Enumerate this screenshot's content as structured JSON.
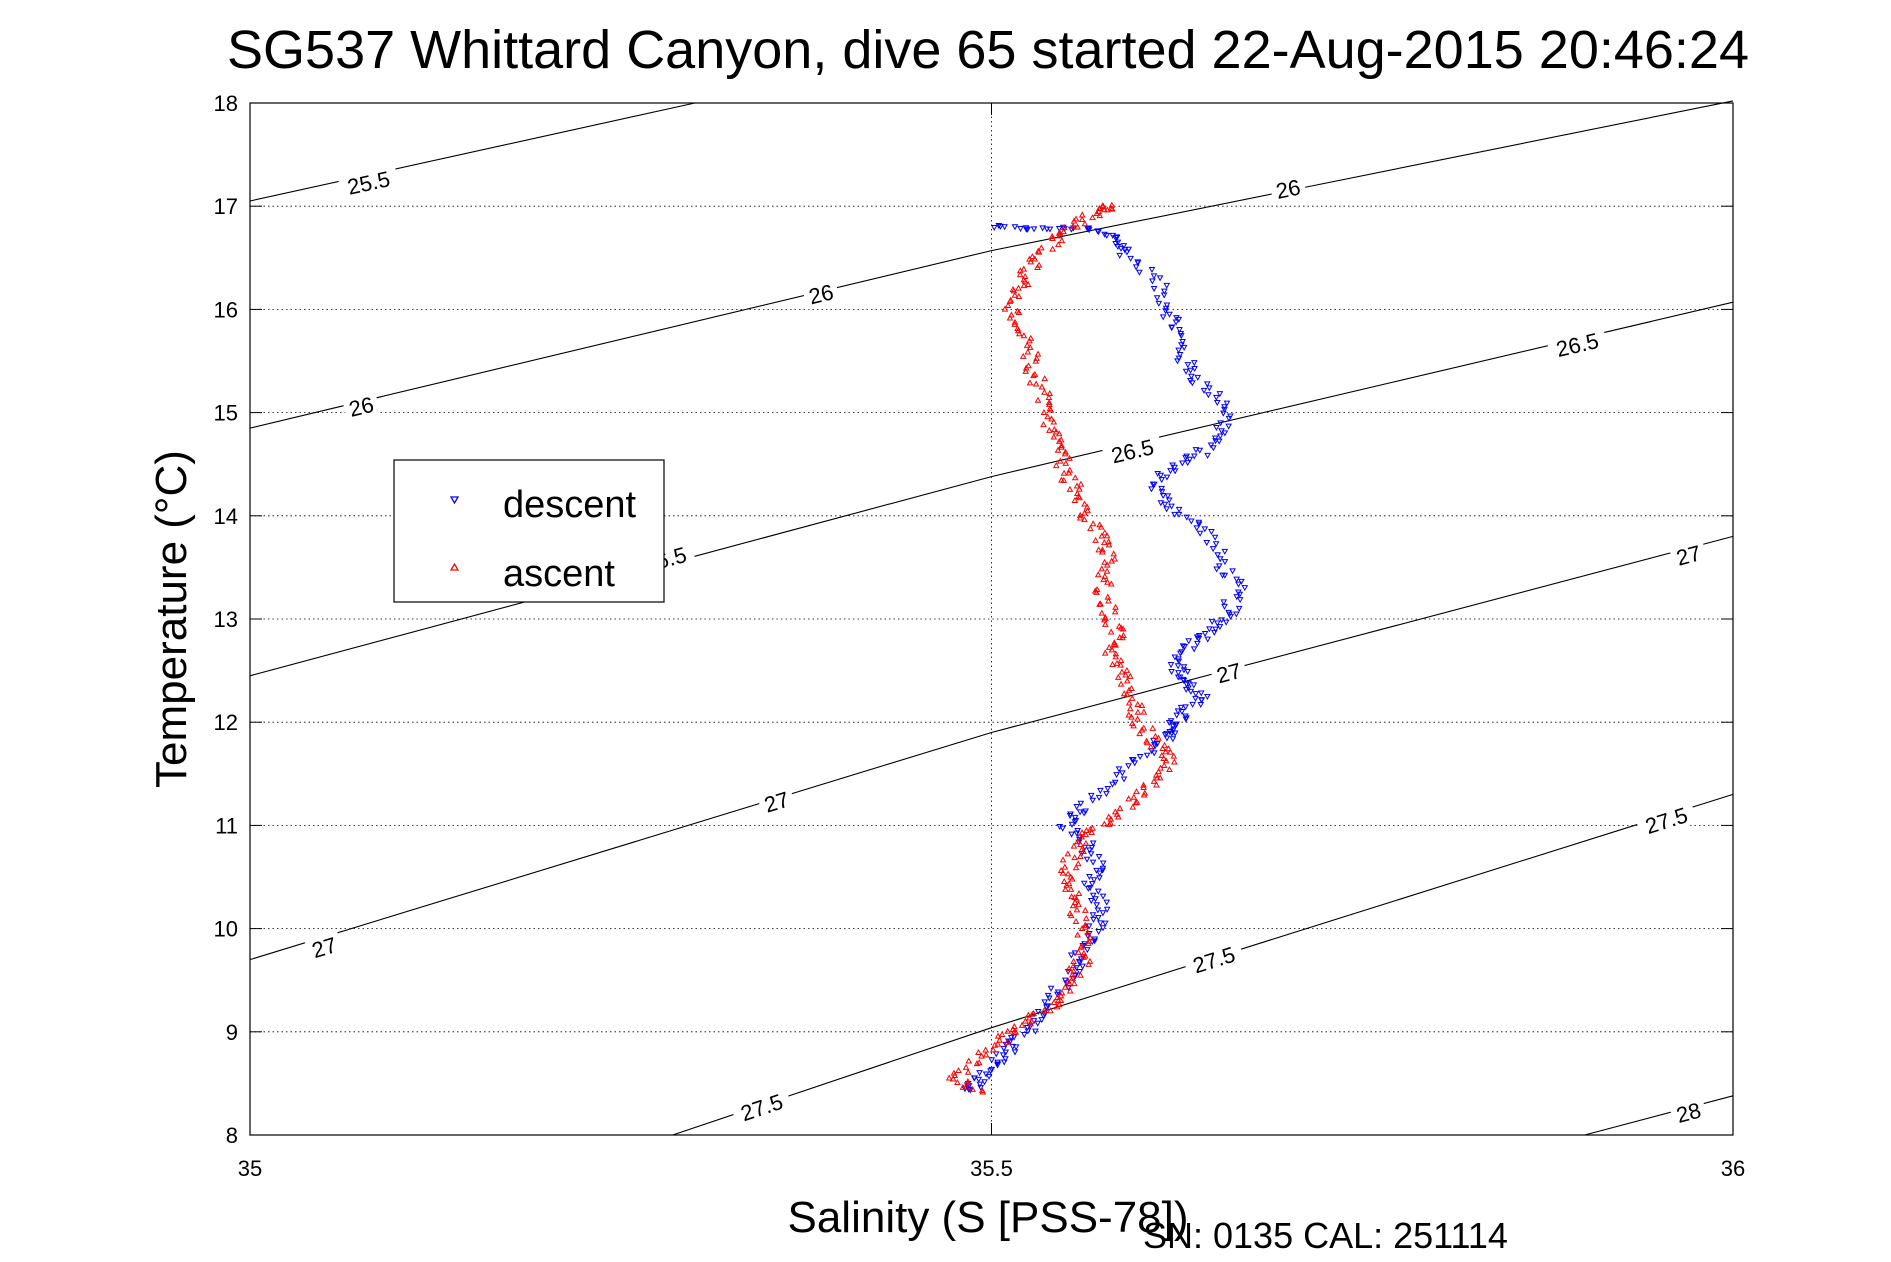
{
  "chart_data": {
    "type": "scatter",
    "title": "SG537 Whittard Canyon, dive 65 started 22-Aug-2015 20:46:24",
    "xlabel": "Salinity (S [PSS-78])",
    "ylabel": "Temperature (°C)",
    "footer": "SN: 0135  CAL: 251114",
    "xlim": [
      35,
      36
    ],
    "ylim": [
      8,
      18
    ],
    "xticks": [
      "35",
      "35.5",
      "36"
    ],
    "yticks": [
      "8",
      "9",
      "10",
      "11",
      "12",
      "13",
      "14",
      "15",
      "16",
      "17",
      "18"
    ],
    "grid": true,
    "legend_position": "left",
    "legend": [
      {
        "label": "descent",
        "color": "#0000ff",
        "marker": "triangle-down"
      },
      {
        "label": "ascent",
        "color": "#ff0000",
        "marker": "triangle-up"
      }
    ],
    "contours": [
      {
        "level": 25.5,
        "label": "25.5",
        "points": [
          [
            35.0,
            17.05
          ],
          [
            35.3,
            18.0
          ]
        ],
        "labels": [
          {
            "s": 35.08,
            "t": 17.23,
            "text": "25.5"
          }
        ]
      },
      {
        "level": 26,
        "label": "26",
        "points": [
          [
            35.0,
            14.85
          ],
          [
            35.5,
            16.57
          ],
          [
            36.0,
            18.02
          ]
        ],
        "labels": [
          {
            "s": 35.075,
            "t": 15.06,
            "text": "26"
          },
          {
            "s": 35.385,
            "t": 16.15,
            "text": "26"
          },
          {
            "s": 35.7,
            "t": 17.17,
            "text": "26"
          }
        ]
      },
      {
        "level": 26.5,
        "label": "26.5",
        "points": [
          [
            35.0,
            12.45
          ],
          [
            35.5,
            14.38
          ],
          [
            36.0,
            16.07
          ]
        ],
        "labels": [
          {
            "s": 35.28,
            "t": 13.58,
            "text": "26.5"
          },
          {
            "s": 35.595,
            "t": 14.63,
            "text": "26.5"
          },
          {
            "s": 35.895,
            "t": 15.66,
            "text": "26.5"
          }
        ]
      },
      {
        "level": 27,
        "label": "27",
        "points": [
          [
            35.0,
            9.7
          ],
          [
            35.5,
            11.9
          ],
          [
            36.0,
            13.8
          ]
        ],
        "labels": [
          {
            "s": 35.05,
            "t": 9.82,
            "text": "27"
          },
          {
            "s": 35.355,
            "t": 11.23,
            "text": "27"
          },
          {
            "s": 35.66,
            "t": 12.48,
            "text": "27"
          },
          {
            "s": 35.97,
            "t": 13.62,
            "text": "27"
          }
        ]
      },
      {
        "level": 27.5,
        "label": "27.5",
        "points": [
          [
            35.285,
            8.0
          ],
          [
            35.5,
            9.04
          ],
          [
            36.0,
            11.3
          ]
        ],
        "labels": [
          {
            "s": 35.345,
            "t": 8.27,
            "text": "27.5"
          },
          {
            "s": 35.65,
            "t": 9.7,
            "text": "27.5"
          },
          {
            "s": 35.955,
            "t": 11.05,
            "text": "27.5"
          }
        ]
      },
      {
        "level": 28,
        "label": "28",
        "points": [
          [
            35.9,
            8.0
          ],
          [
            36.0,
            8.38
          ]
        ],
        "labels": [
          {
            "s": 35.97,
            "t": 8.22,
            "text": "28"
          }
        ]
      }
    ],
    "series": [
      {
        "name": "descent",
        "color": "#0000ff",
        "marker": "triangle-down",
        "path": [
          [
            35.5,
            16.8
          ],
          [
            35.53,
            16.78
          ],
          [
            35.56,
            16.79
          ],
          [
            35.585,
            16.7
          ],
          [
            35.59,
            16.55
          ],
          [
            35.61,
            16.3
          ],
          [
            35.62,
            16.0
          ],
          [
            35.625,
            15.8
          ],
          [
            35.63,
            15.5
          ],
          [
            35.64,
            15.3
          ],
          [
            35.66,
            15.05
          ],
          [
            35.655,
            14.8
          ],
          [
            35.64,
            14.6
          ],
          [
            35.62,
            14.45
          ],
          [
            35.61,
            14.25
          ],
          [
            35.625,
            14.05
          ],
          [
            35.645,
            13.85
          ],
          [
            35.655,
            13.55
          ],
          [
            35.665,
            13.3
          ],
          [
            35.66,
            13.05
          ],
          [
            35.65,
            12.9
          ],
          [
            35.635,
            12.75
          ],
          [
            35.625,
            12.55
          ],
          [
            35.63,
            12.4
          ],
          [
            35.64,
            12.25
          ],
          [
            35.63,
            12.1
          ],
          [
            35.62,
            11.95
          ],
          [
            35.617,
            11.85
          ],
          [
            35.6,
            11.65
          ],
          [
            35.58,
            11.4
          ],
          [
            35.56,
            11.15
          ],
          [
            35.55,
            11.0
          ],
          [
            35.565,
            10.8
          ],
          [
            35.57,
            10.6
          ],
          [
            35.565,
            10.4
          ],
          [
            35.575,
            10.2
          ],
          [
            35.57,
            10.0
          ],
          [
            35.56,
            9.8
          ],
          [
            35.555,
            9.6
          ],
          [
            35.545,
            9.4
          ],
          [
            35.535,
            9.15
          ],
          [
            35.52,
            8.95
          ],
          [
            35.51,
            8.8
          ],
          [
            35.5,
            8.65
          ],
          [
            35.49,
            8.5
          ],
          [
            35.485,
            8.43
          ]
        ]
      },
      {
        "name": "ascent",
        "color": "#ff0000",
        "marker": "triangle-up",
        "path": [
          [
            35.49,
            8.42
          ],
          [
            35.475,
            8.55
          ],
          [
            35.49,
            8.75
          ],
          [
            35.51,
            8.95
          ],
          [
            35.525,
            9.1
          ],
          [
            35.54,
            9.25
          ],
          [
            35.55,
            9.45
          ],
          [
            35.56,
            9.65
          ],
          [
            35.565,
            9.85
          ],
          [
            35.56,
            10.1
          ],
          [
            35.555,
            10.3
          ],
          [
            35.55,
            10.5
          ],
          [
            35.555,
            10.7
          ],
          [
            35.565,
            10.9
          ],
          [
            35.58,
            11.05
          ],
          [
            35.595,
            11.25
          ],
          [
            35.61,
            11.45
          ],
          [
            35.62,
            11.65
          ],
          [
            35.61,
            11.8
          ],
          [
            35.6,
            12.0
          ],
          [
            35.595,
            12.2
          ],
          [
            35.59,
            12.45
          ],
          [
            35.58,
            12.65
          ],
          [
            35.585,
            12.85
          ],
          [
            35.58,
            13.05
          ],
          [
            35.575,
            13.3
          ],
          [
            35.58,
            13.55
          ],
          [
            35.575,
            13.75
          ],
          [
            35.565,
            13.95
          ],
          [
            35.56,
            14.2
          ],
          [
            35.55,
            14.4
          ],
          [
            35.545,
            14.65
          ],
          [
            35.54,
            14.85
          ],
          [
            35.535,
            15.1
          ],
          [
            35.53,
            15.35
          ],
          [
            35.525,
            15.6
          ],
          [
            35.515,
            15.85
          ],
          [
            35.515,
            16.1
          ],
          [
            35.52,
            16.3
          ],
          [
            35.53,
            16.5
          ],
          [
            35.545,
            16.7
          ],
          [
            35.56,
            16.85
          ],
          [
            35.575,
            16.98
          ],
          [
            35.58,
            17.0
          ]
        ]
      }
    ]
  }
}
